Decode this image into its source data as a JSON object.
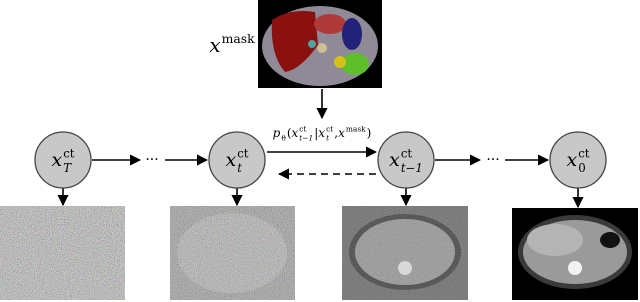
{
  "mask_label": {
    "text": "x",
    "sup": "mask"
  },
  "nodes": [
    {
      "text": "x",
      "sup": "ct",
      "sub": "T"
    },
    {
      "text": "x",
      "sup": "ct",
      "sub": "t"
    },
    {
      "text": "x",
      "sup": "ct",
      "sub": "t−1"
    },
    {
      "text": "x",
      "sup": "ct",
      "sub": "0"
    }
  ],
  "ellipses": [
    "···",
    "···"
  ],
  "transition_label": [
    {
      "text": "p",
      "sub": "θ"
    },
    {
      "text": "("
    },
    {
      "text": "x",
      "sup": "ct",
      "sub": "t−1"
    },
    {
      "text": "|"
    },
    {
      "text": "x",
      "sup": "ct",
      "sub": "t"
    },
    {
      "text": ", "
    },
    {
      "text": "x",
      "sup": "mask"
    },
    {
      "text": ")"
    }
  ]
}
